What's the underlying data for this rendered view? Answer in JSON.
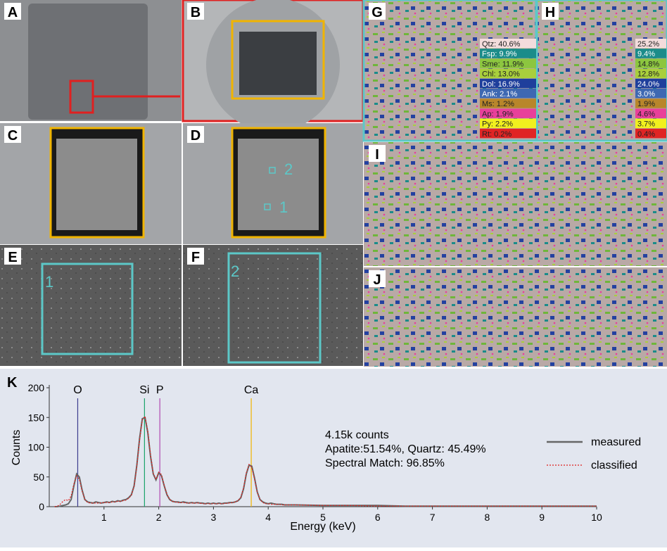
{
  "panels": [
    "A",
    "B",
    "C",
    "D",
    "E",
    "F",
    "G",
    "H",
    "I",
    "J"
  ],
  "region_labels": [
    "2",
    "1",
    "1",
    "2"
  ],
  "mineral_table": {
    "colors": [
      "#f3dcdc",
      "#1b8c8a",
      "#8cc63f",
      "#a9cf3c",
      "#1f3f9c",
      "#3e68b2",
      "#b8862b",
      "#e8409a",
      "#f1f01e",
      "#e02424"
    ],
    "G": [
      "Qtz: 40.6%",
      "Fsp: 9.9%",
      "Sme: 11.9%",
      "Chl: 13.0%",
      "Dol: 16.9%",
      "Ank: 2.1%",
      "Ms: 1.2%",
      "Ap: 1.9%",
      "Py: 2.2%",
      "Rt: 0.2%"
    ],
    "H": [
      "25.2%",
      "9.4%",
      "14.8%",
      "12.8%",
      "24.0%",
      "3.0%",
      "1.9%",
      "4.6%",
      "3.7%",
      "0.4%"
    ]
  },
  "chart_data": {
    "type": "line",
    "panel": "K",
    "xlabel": "Energy (keV)",
    "ylabel": "Counts",
    "xlim": [
      0,
      10
    ],
    "xticks": [
      1,
      2,
      3,
      4,
      5,
      6,
      7,
      8,
      9,
      10
    ],
    "ylim": [
      0,
      200
    ],
    "yticks": [
      0,
      50,
      100,
      150,
      200
    ],
    "x": [
      0.1,
      0.15,
      0.2,
      0.25,
      0.3,
      0.35,
      0.4,
      0.45,
      0.5,
      0.55,
      0.6,
      0.65,
      0.7,
      0.75,
      0.8,
      0.85,
      0.9,
      0.95,
      1,
      1.05,
      1.1,
      1.15,
      1.2,
      1.25,
      1.3,
      1.35,
      1.4,
      1.45,
      1.5,
      1.55,
      1.6,
      1.65,
      1.7,
      1.75,
      1.8,
      1.85,
      1.9,
      1.95,
      2,
      2.05,
      2.1,
      2.15,
      2.2,
      2.25,
      2.3,
      2.35,
      2.4,
      2.45,
      2.5,
      2.55,
      2.6,
      2.65,
      2.7,
      2.75,
      2.8,
      2.85,
      2.9,
      2.95,
      3,
      3.05,
      3.1,
      3.15,
      3.2,
      3.25,
      3.3,
      3.35,
      3.4,
      3.45,
      3.5,
      3.55,
      3.6,
      3.65,
      3.7,
      3.75,
      3.8,
      3.85,
      3.9,
      3.95,
      4,
      4.05,
      4.1,
      4.15,
      4.2,
      4.25,
      4.3,
      4.35,
      4.4,
      4.45,
      4.5,
      5,
      5.5,
      6,
      6.5,
      7,
      7.5,
      8,
      8.5,
      9,
      9.5,
      10
    ],
    "series": [
      {
        "name": "measured",
        "color": "#666666",
        "dash": false,
        "values": [
          0,
          0,
          1,
          2,
          3,
          5,
          12,
          35,
          55,
          50,
          28,
          12,
          8,
          7,
          6,
          8,
          7,
          6,
          7,
          8,
          7,
          9,
          8,
          10,
          9,
          11,
          12,
          15,
          20,
          35,
          70,
          115,
          148,
          150,
          125,
          85,
          55,
          45,
          57,
          52,
          35,
          20,
          12,
          9,
          8,
          8,
          7,
          8,
          7,
          6,
          7,
          6,
          7,
          6,
          6,
          5,
          6,
          5,
          6,
          5,
          6,
          5,
          6,
          6,
          7,
          7,
          8,
          10,
          15,
          30,
          55,
          70,
          68,
          48,
          25,
          12,
          8,
          6,
          5,
          6,
          5,
          4,
          4,
          4,
          3,
          3,
          3,
          3,
          3,
          2,
          2,
          2,
          1,
          1,
          1,
          1,
          1,
          1,
          1,
          1
        ]
      },
      {
        "name": "classified",
        "color": "#e0201c",
        "dash": true,
        "values": [
          0,
          1,
          4,
          9,
          12,
          10,
          18,
          38,
          52,
          46,
          26,
          12,
          7,
          6,
          6,
          6,
          6,
          6,
          7,
          7,
          7,
          8,
          8,
          9,
          9,
          10,
          11,
          14,
          19,
          34,
          68,
          112,
          146,
          152,
          128,
          88,
          56,
          46,
          58,
          54,
          36,
          21,
          12,
          9,
          8,
          7,
          7,
          7,
          6,
          6,
          6,
          6,
          6,
          6,
          5,
          5,
          5,
          5,
          5,
          5,
          5,
          5,
          5,
          6,
          6,
          7,
          8,
          10,
          16,
          32,
          57,
          71,
          66,
          46,
          24,
          12,
          7,
          5,
          5,
          4,
          4,
          4,
          4,
          3,
          3,
          3,
          3,
          3,
          3,
          2,
          2,
          1,
          1,
          1,
          1,
          1,
          1,
          1,
          1,
          1
        ]
      }
    ],
    "element_lines": [
      {
        "label": "O",
        "x": 0.52,
        "color": "#3b3b8f"
      },
      {
        "label": "Si",
        "x": 1.74,
        "color": "#1aa36a"
      },
      {
        "label": "P",
        "x": 2.02,
        "color": "#b04ab0"
      },
      {
        "label": "Ca",
        "x": 3.69,
        "color": "#f0b400"
      }
    ],
    "annotations": [
      "4.15k counts",
      "Apatite:51.54%, Quartz: 45.49%",
      "Spectral Match: 96.85%"
    ]
  }
}
